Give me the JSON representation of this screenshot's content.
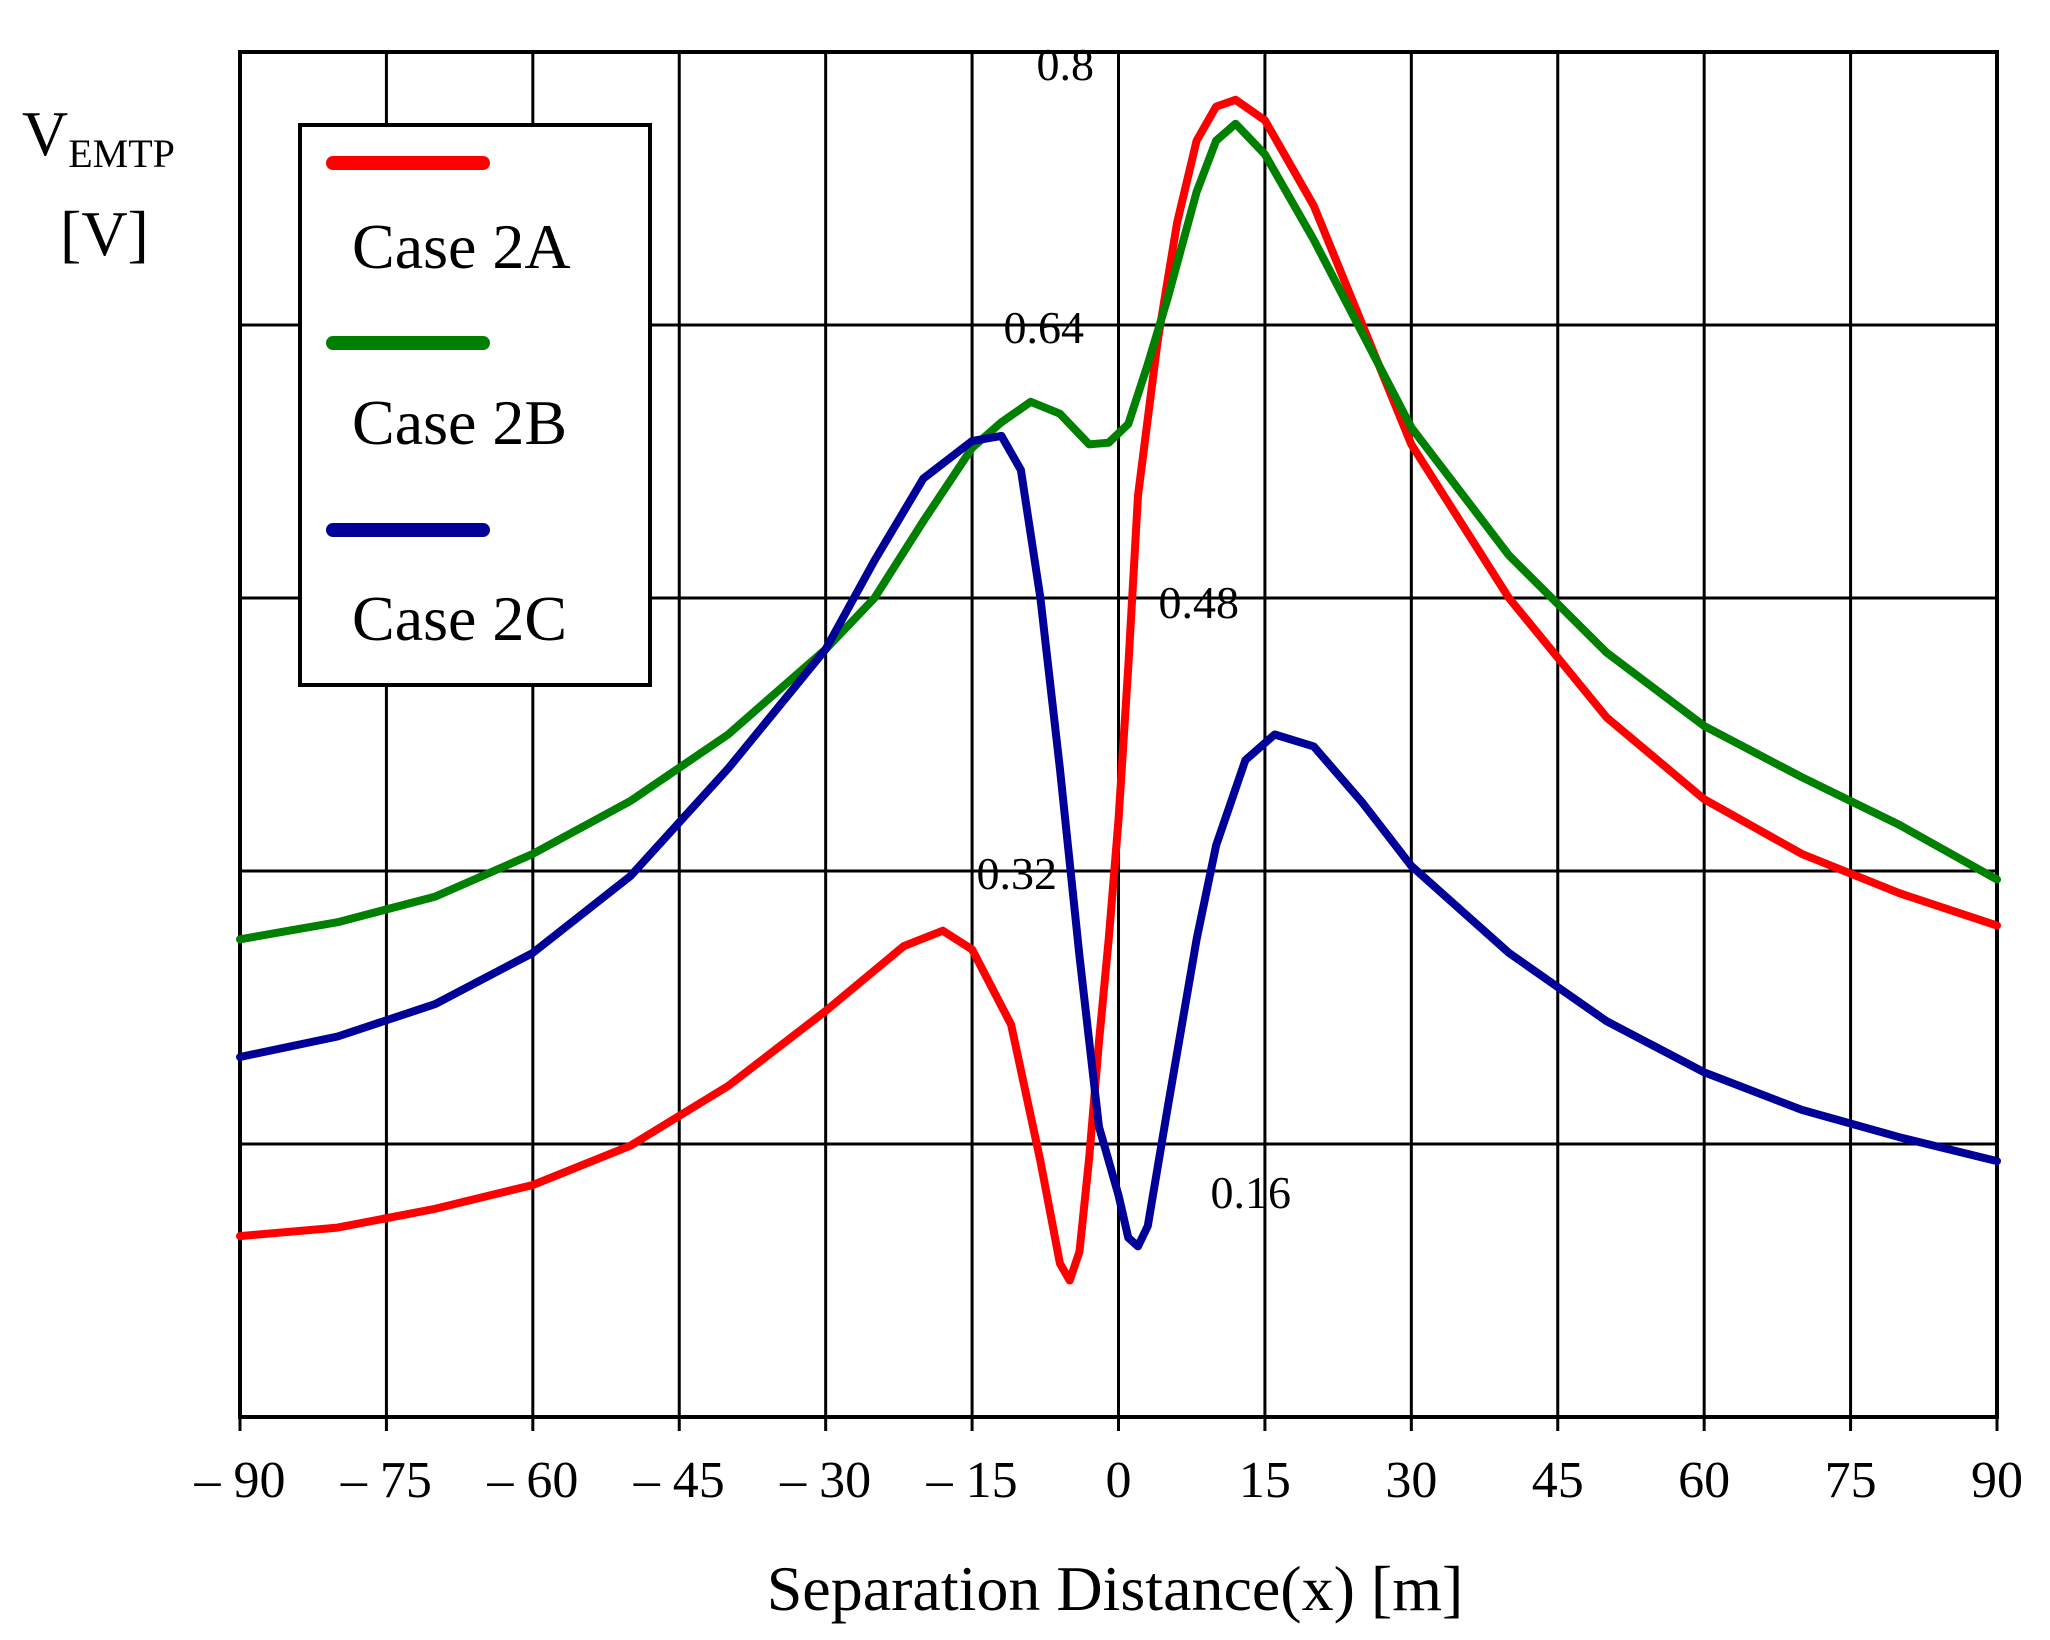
{
  "chart_data": {
    "type": "line",
    "title": "",
    "ylabel_main": "V",
    "ylabel_sub": "EMTP",
    "ylabel_unit": "[V]",
    "xlabel": "Separation Distance(x) [m]",
    "xlim": [
      -90,
      90
    ],
    "ylim": [
      0,
      0.8
    ],
    "x_ticks": [
      -90,
      -75,
      -60,
      -45,
      -30,
      -15,
      0,
      15,
      30,
      45,
      60,
      75,
      90
    ],
    "x_tick_labels": [
      "– 90",
      "– 75",
      "– 60",
      "– 45",
      "– 30",
      "– 15",
      "0",
      "15",
      "30",
      "45",
      "60",
      "75",
      "90"
    ],
    "y_ticks": [
      0.16,
      0.32,
      0.48,
      0.64,
      0.8
    ],
    "y_tick_labels": [
      "0.16",
      "0.32",
      "0.48",
      "0.64",
      "0.8"
    ],
    "grid": true,
    "legend_position": "top-left",
    "series": [
      {
        "name": "Case 2A",
        "color": "#ff0000",
        "points": [
          [
            -90,
            0.106
          ],
          [
            -80,
            0.111
          ],
          [
            -70,
            0.122
          ],
          [
            -60,
            0.136
          ],
          [
            -50,
            0.159
          ],
          [
            -40,
            0.194
          ],
          [
            -30,
            0.238
          ],
          [
            -22,
            0.276
          ],
          [
            -18,
            0.285
          ],
          [
            -15,
            0.274
          ],
          [
            -11,
            0.23
          ],
          [
            -8,
            0.15
          ],
          [
            -6,
            0.09
          ],
          [
            -5,
            0.08
          ],
          [
            -4,
            0.097
          ],
          [
            -3,
            0.152
          ],
          [
            -2,
            0.22
          ],
          [
            -1,
            0.28
          ],
          [
            0,
            0.35
          ],
          [
            1,
            0.44
          ],
          [
            2,
            0.54
          ],
          [
            4,
            0.63
          ],
          [
            6,
            0.7
          ],
          [
            8,
            0.748
          ],
          [
            10,
            0.768
          ],
          [
            12,
            0.772
          ],
          [
            15,
            0.76
          ],
          [
            20,
            0.71
          ],
          [
            25,
            0.64
          ],
          [
            30,
            0.57
          ],
          [
            40,
            0.48
          ],
          [
            50,
            0.41
          ],
          [
            60,
            0.362
          ],
          [
            70,
            0.33
          ],
          [
            80,
            0.307
          ],
          [
            90,
            0.288
          ]
        ]
      },
      {
        "name": "Case 2B",
        "color": "#008000",
        "points": [
          [
            -90,
            0.28
          ],
          [
            -80,
            0.29
          ],
          [
            -70,
            0.305
          ],
          [
            -60,
            0.33
          ],
          [
            -50,
            0.361
          ],
          [
            -40,
            0.4
          ],
          [
            -30,
            0.45
          ],
          [
            -25,
            0.48
          ],
          [
            -20,
            0.525
          ],
          [
            -15,
            0.568
          ],
          [
            -12,
            0.583
          ],
          [
            -9,
            0.595
          ],
          [
            -6,
            0.588
          ],
          [
            -3,
            0.57
          ],
          [
            -1,
            0.571
          ],
          [
            1,
            0.582
          ],
          [
            3,
            0.617
          ],
          [
            5,
            0.655
          ],
          [
            8,
            0.718
          ],
          [
            10,
            0.748
          ],
          [
            12,
            0.758
          ],
          [
            15,
            0.74
          ],
          [
            20,
            0.69
          ],
          [
            25,
            0.635
          ],
          [
            30,
            0.58
          ],
          [
            40,
            0.505
          ],
          [
            50,
            0.448
          ],
          [
            60,
            0.405
          ],
          [
            70,
            0.375
          ],
          [
            80,
            0.347
          ],
          [
            90,
            0.315
          ]
        ]
      },
      {
        "name": "Case 2C",
        "color": "#000099",
        "points": [
          [
            -90,
            0.211
          ],
          [
            -80,
            0.223
          ],
          [
            -70,
            0.242
          ],
          [
            -60,
            0.272
          ],
          [
            -50,
            0.317
          ],
          [
            -40,
            0.38
          ],
          [
            -30,
            0.45
          ],
          [
            -25,
            0.502
          ],
          [
            -20,
            0.55
          ],
          [
            -15,
            0.572
          ],
          [
            -12,
            0.575
          ],
          [
            -10,
            0.555
          ],
          [
            -8,
            0.48
          ],
          [
            -6,
            0.38
          ],
          [
            -4,
            0.27
          ],
          [
            -2,
            0.17
          ],
          [
            0,
            0.13
          ],
          [
            1,
            0.105
          ],
          [
            2,
            0.1
          ],
          [
            3,
            0.112
          ],
          [
            5,
            0.18
          ],
          [
            8,
            0.28
          ],
          [
            10,
            0.335
          ],
          [
            13,
            0.385
          ],
          [
            16,
            0.4
          ],
          [
            20,
            0.393
          ],
          [
            25,
            0.36
          ],
          [
            30,
            0.323
          ],
          [
            40,
            0.272
          ],
          [
            50,
            0.232
          ],
          [
            60,
            0.202
          ],
          [
            70,
            0.18
          ],
          [
            80,
            0.164
          ],
          [
            90,
            0.15
          ]
        ]
      }
    ]
  }
}
